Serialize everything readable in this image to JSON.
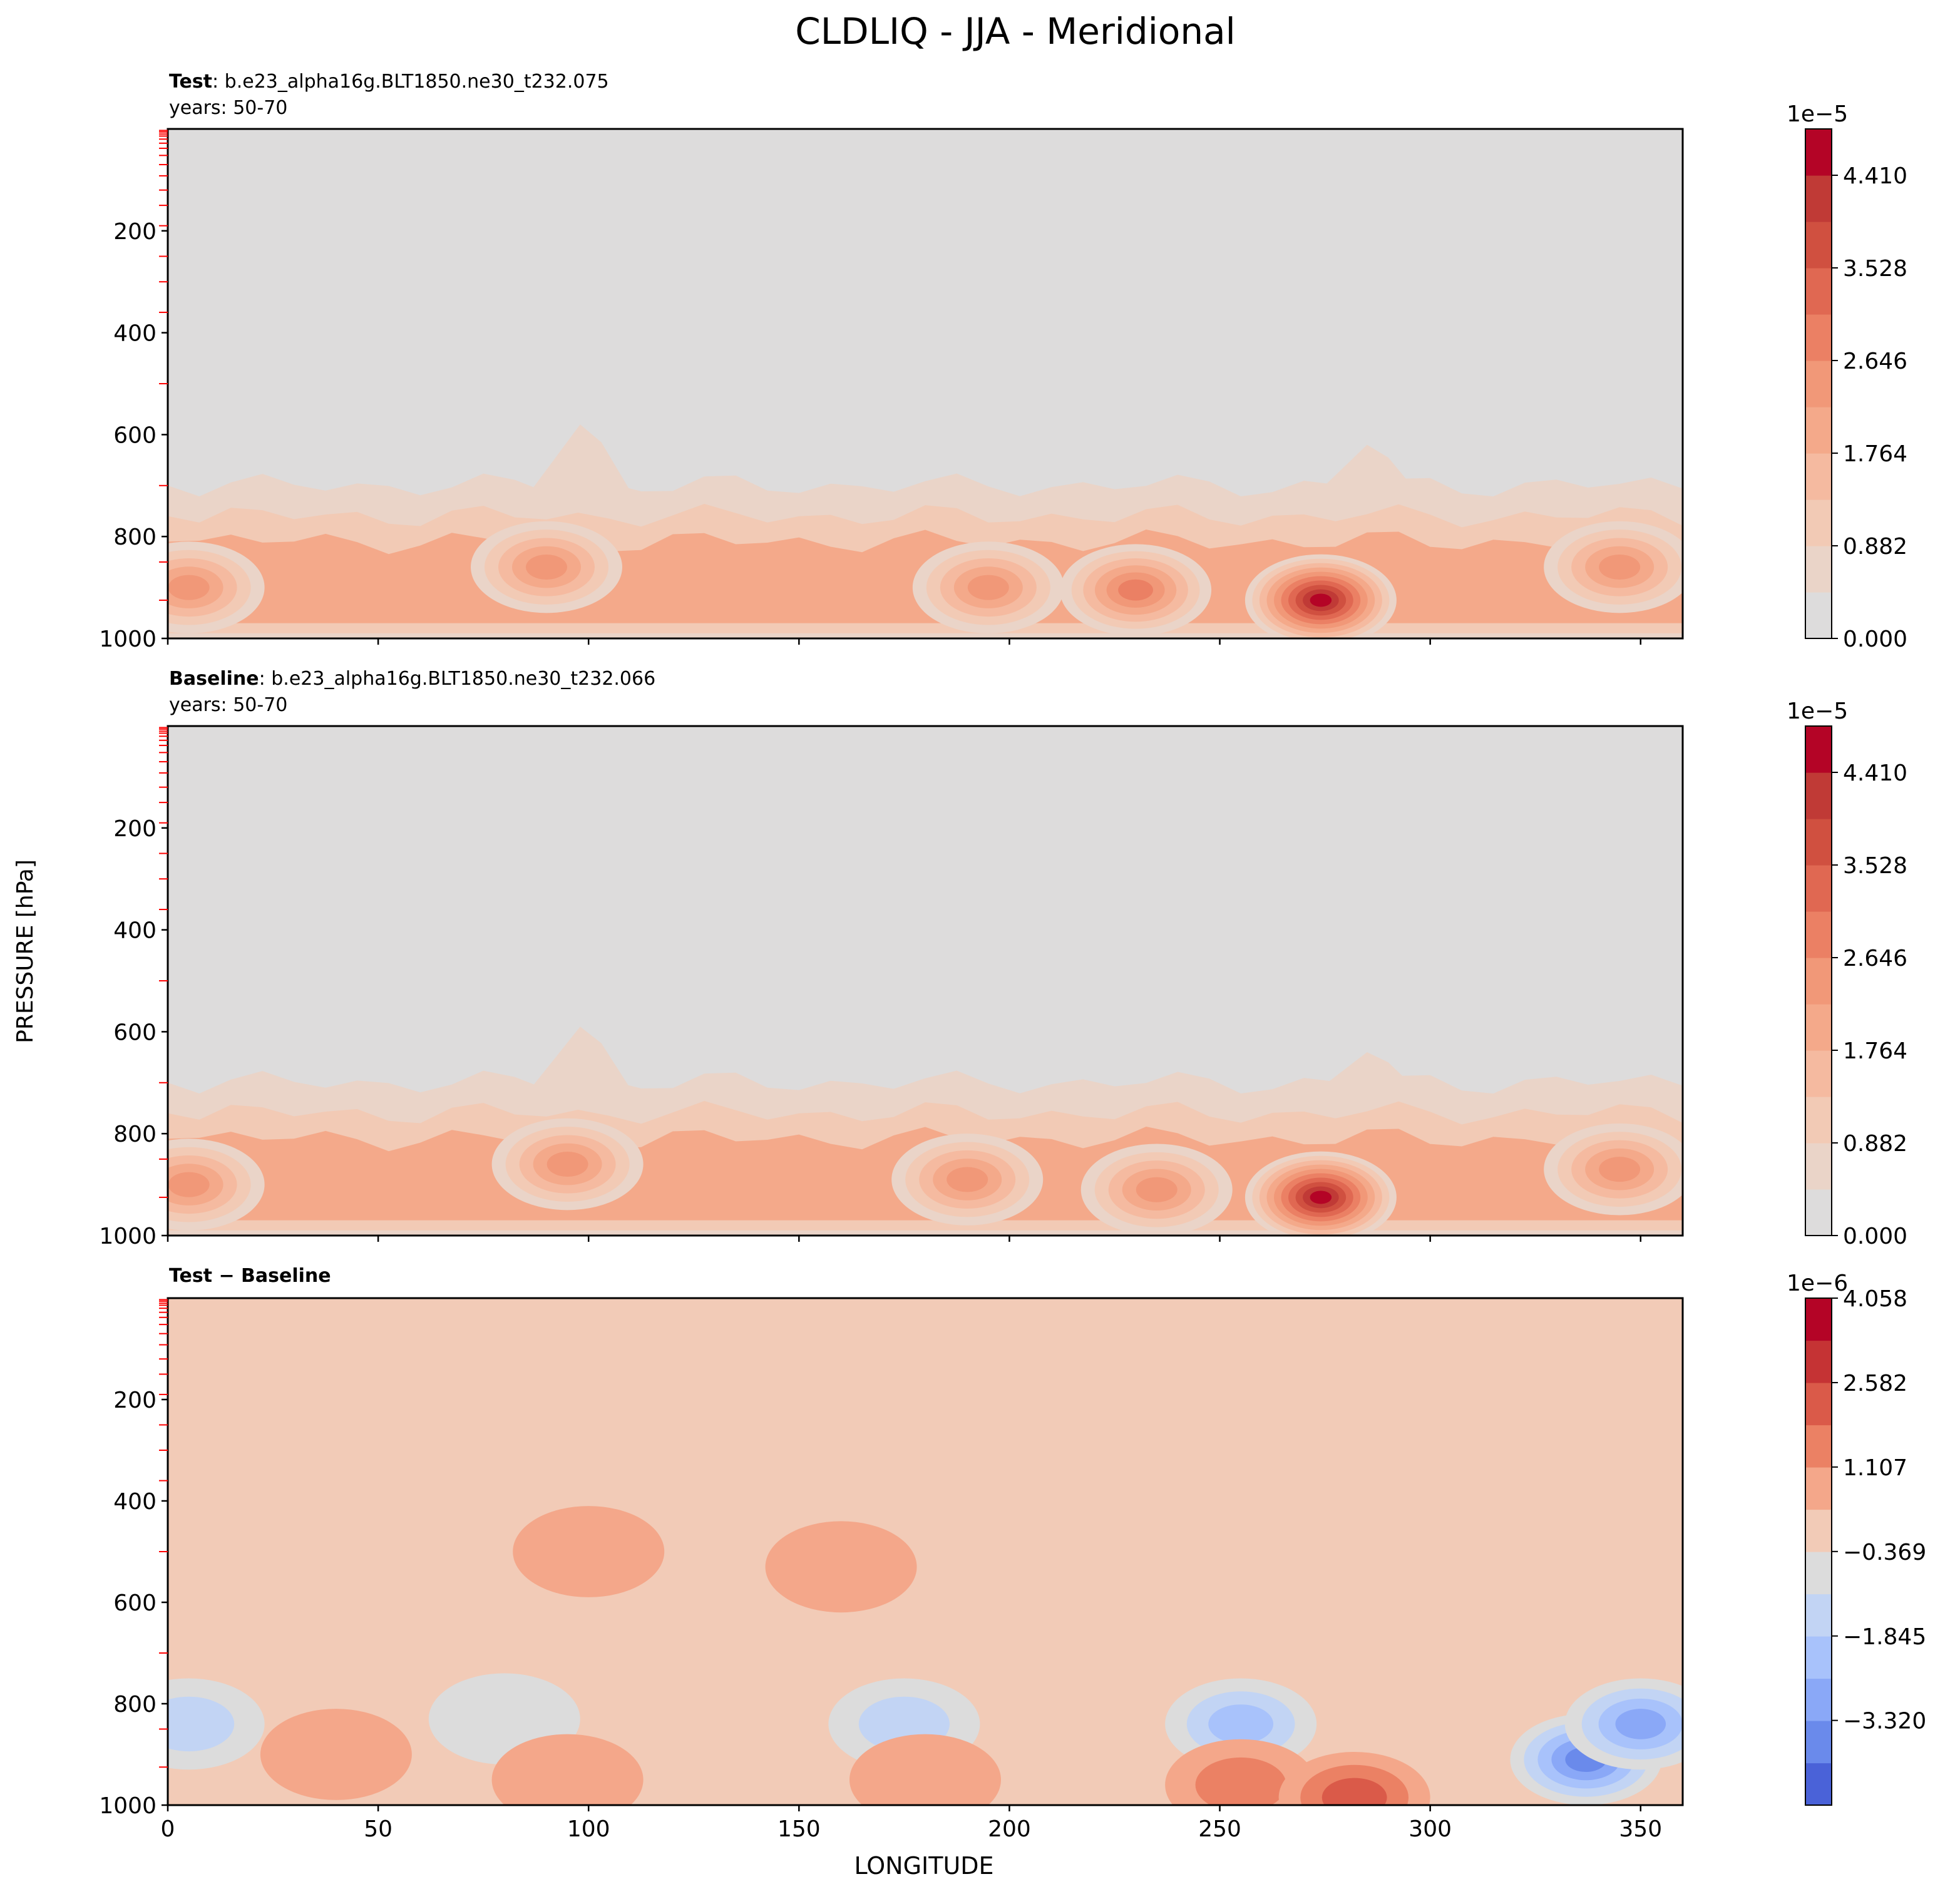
{
  "figure": {
    "title": "CLDLIQ - JJA - Meridional",
    "ylabel": "PRESSURE [hPa]",
    "xlabel": "LONGITUDE"
  },
  "chart_data": [
    {
      "type": "heatmap",
      "panel": "test",
      "label_bold": "Test",
      "label_rest": ": b.e23_alpha16g.BLT1850.ne30_t232.075",
      "years": "years: 50-70",
      "xlim": [
        0,
        360
      ],
      "ylim": [
        1000,
        0
      ],
      "xticks": [
        0,
        50,
        100,
        150,
        200,
        250,
        300,
        350
      ],
      "yticks": [
        200,
        400,
        600,
        800,
        1000
      ],
      "colorbar": {
        "exponent": "1e−5",
        "range": [
          0.0,
          4.851
        ],
        "levels": 11,
        "ticks": [
          "0.000",
          "0.882",
          "1.764",
          "2.646",
          "3.528",
          "4.410"
        ],
        "tick_values": [
          0.0,
          0.882,
          1.764,
          2.646,
          3.528,
          4.41
        ],
        "colors": [
          "#dddcdc",
          "#ead4c8",
          "#f2cab5",
          "#f5baa0",
          "#f4a98a",
          "#f19878",
          "#eb8064",
          "#e06852",
          "#d05040",
          "#c03a36",
          "#b40426"
        ]
      },
      "features": [
        {
          "type": "layer",
          "lon": [
            0,
            360
          ],
          "pressure": [
            700,
            1000
          ],
          "value": 0.6
        },
        {
          "type": "layer",
          "lon": [
            0,
            360
          ],
          "pressure": [
            760,
            990
          ],
          "value": 1.2
        },
        {
          "type": "layer",
          "lon": [
            0,
            360
          ],
          "pressure": [
            810,
            970
          ],
          "value": 1.9
        },
        {
          "type": "blob",
          "lon": 5,
          "pressure": 900,
          "value": 2.3
        },
        {
          "type": "blob",
          "lon": 90,
          "pressure": 860,
          "value": 2.6
        },
        {
          "type": "blob",
          "lon": 195,
          "pressure": 900,
          "value": 2.4
        },
        {
          "type": "blob",
          "lon": 230,
          "pressure": 905,
          "value": 2.7
        },
        {
          "type": "blob",
          "lon": 274,
          "pressure": 925,
          "value": 4.6
        },
        {
          "type": "blob",
          "lon": 345,
          "pressure": 860,
          "value": 2.5
        },
        {
          "type": "peak",
          "lon": 98,
          "pressure": 580,
          "value": 0.6
        },
        {
          "type": "peak",
          "lon": 285,
          "pressure": 620,
          "value": 0.6
        }
      ]
    },
    {
      "type": "heatmap",
      "panel": "baseline",
      "label_bold": "Baseline",
      "label_rest": ": b.e23_alpha16g.BLT1850.ne30_t232.066",
      "years": "years: 50-70",
      "xlim": [
        0,
        360
      ],
      "ylim": [
        1000,
        0
      ],
      "xticks": [
        0,
        50,
        100,
        150,
        200,
        250,
        300,
        350
      ],
      "yticks": [
        200,
        400,
        600,
        800,
        1000
      ],
      "colorbar": {
        "exponent": "1e−5",
        "range": [
          0.0,
          4.851
        ],
        "levels": 11,
        "ticks": [
          "0.000",
          "0.882",
          "1.764",
          "2.646",
          "3.528",
          "4.410"
        ],
        "tick_values": [
          0.0,
          0.882,
          1.764,
          2.646,
          3.528,
          4.41
        ],
        "colors": [
          "#dddcdc",
          "#ead4c8",
          "#f2cab5",
          "#f5baa0",
          "#f4a98a",
          "#f19878",
          "#eb8064",
          "#e06852",
          "#d05040",
          "#c03a36",
          "#b40426"
        ]
      },
      "features": [
        {
          "type": "layer",
          "lon": [
            0,
            360
          ],
          "pressure": [
            700,
            1000
          ],
          "value": 0.6
        },
        {
          "type": "layer",
          "lon": [
            0,
            360
          ],
          "pressure": [
            760,
            990
          ],
          "value": 1.2
        },
        {
          "type": "layer",
          "lon": [
            0,
            360
          ],
          "pressure": [
            810,
            970
          ],
          "value": 1.9
        },
        {
          "type": "blob",
          "lon": 5,
          "pressure": 900,
          "value": 2.3
        },
        {
          "type": "blob",
          "lon": 95,
          "pressure": 860,
          "value": 2.5
        },
        {
          "type": "blob",
          "lon": 190,
          "pressure": 890,
          "value": 2.5
        },
        {
          "type": "blob",
          "lon": 235,
          "pressure": 910,
          "value": 2.6
        },
        {
          "type": "blob",
          "lon": 274,
          "pressure": 925,
          "value": 4.5
        },
        {
          "type": "blob",
          "lon": 345,
          "pressure": 870,
          "value": 2.5
        },
        {
          "type": "peak",
          "lon": 98,
          "pressure": 590,
          "value": 0.6
        },
        {
          "type": "peak",
          "lon": 285,
          "pressure": 640,
          "value": 0.6
        }
      ]
    },
    {
      "type": "heatmap",
      "panel": "difference",
      "label_bold": "Test − Baseline",
      "label_rest": "",
      "years": "",
      "xlim": [
        0,
        360
      ],
      "ylim": [
        1000,
        0
      ],
      "xticks": [
        0,
        50,
        100,
        150,
        200,
        250,
        300,
        350
      ],
      "yticks": [
        200,
        400,
        600,
        800,
        1000
      ],
      "colorbar": {
        "exponent": "1e−6",
        "range": [
          -4.8,
          4.058
        ],
        "levels": 12,
        "ticks": [
          "−3.320",
          "−1.845",
          "−0.369",
          "1.107",
          "2.582",
          "4.058"
        ],
        "tick_values": [
          -3.32,
          -1.845,
          -0.369,
          1.107,
          2.582,
          4.058
        ],
        "colors": [
          "#4a62d8",
          "#6a8aeb",
          "#8aa8f7",
          "#a8c2fb",
          "#c2d4f4",
          "#dcdcdc",
          "#f2cbb7",
          "#f4a78a",
          "#eb8164",
          "#da5a49",
          "#c53334",
          "#b40426"
        ]
      },
      "features": [
        {
          "type": "blob",
          "lon": 5,
          "pressure": 840,
          "value": -1.2
        },
        {
          "type": "blob",
          "lon": 40,
          "pressure": 900,
          "value": 0.6
        },
        {
          "type": "blob",
          "lon": 80,
          "pressure": 830,
          "value": -1.0
        },
        {
          "type": "blob",
          "lon": 95,
          "pressure": 950,
          "value": 0.6
        },
        {
          "type": "blob",
          "lon": 100,
          "pressure": 500,
          "value": 0.6
        },
        {
          "type": "blob",
          "lon": 160,
          "pressure": 530,
          "value": 0.6
        },
        {
          "type": "blob",
          "lon": 175,
          "pressure": 840,
          "value": -1.4
        },
        {
          "type": "blob",
          "lon": 180,
          "pressure": 950,
          "value": 0.6
        },
        {
          "type": "blob",
          "lon": 255,
          "pressure": 840,
          "value": -2.2
        },
        {
          "type": "blob",
          "lon": 255,
          "pressure": 960,
          "value": 1.3
        },
        {
          "type": "blob",
          "lon": 282,
          "pressure": 985,
          "value": 2.2
        },
        {
          "type": "blob",
          "lon": 337,
          "pressure": 910,
          "value": -3.8
        },
        {
          "type": "blob",
          "lon": 350,
          "pressure": 840,
          "value": -2.6
        }
      ]
    }
  ]
}
